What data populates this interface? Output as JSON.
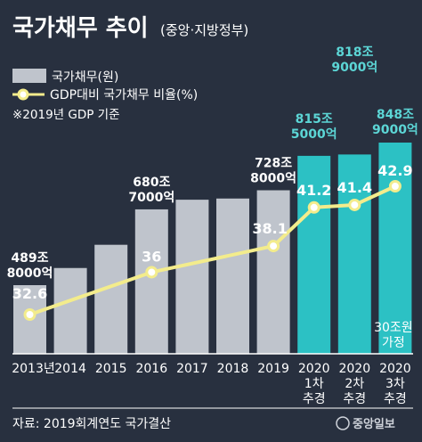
{
  "header": {
    "title": "국가채무 추이",
    "subtitle": "(중앙·지방정부)"
  },
  "legend": {
    "bar_label": "국가채무(원)",
    "line_label": "GDP대비 국가채무 비율(%)",
    "note": "※2019년 GDP 기준"
  },
  "footer": {
    "source": "자료: 2019회계연도 국가결산",
    "logo": "중앙일보"
  },
  "colors": {
    "background": "#28303f",
    "bar_gray": "#bfc4cc",
    "bar_teal": "#2cc1c4",
    "line": "#f3ec8c",
    "marker_fill": "#ffffff",
    "teal_text": "#5cd6d6",
    "axis": "#ffffff"
  },
  "chart_data": {
    "type": "bar",
    "categories": [
      [
        "2013년"
      ],
      [
        "2014"
      ],
      [
        "2015"
      ],
      [
        "2016"
      ],
      [
        "2017"
      ],
      [
        "2018"
      ],
      [
        "2019"
      ],
      [
        "2020",
        "1차",
        "추경"
      ],
      [
        "2020",
        "2차",
        "추경"
      ],
      [
        "2020",
        "3차",
        "추경"
      ]
    ],
    "series": [
      {
        "name": "국가채무(원)",
        "type": "bar",
        "unit": "조원",
        "values": [
          489.8,
          533,
          591.5,
          680.7,
          705,
          708,
          728.8,
          815.5,
          818.9,
          848.9
        ],
        "bar_labels": [
          [
            "489조",
            "8000억"
          ],
          null,
          null,
          [
            "680조",
            "7000억"
          ],
          null,
          null,
          [
            "728조",
            "8000억"
          ],
          [
            "815조",
            "5000억"
          ],
          [
            "818조",
            "9000억"
          ],
          [
            "848조",
            "9000억"
          ]
        ],
        "colors": [
          "gray",
          "gray",
          "gray",
          "gray",
          "gray",
          "gray",
          "gray",
          "teal",
          "teal",
          "teal"
        ]
      },
      {
        "name": "GDP대비 국가채무 비율(%)",
        "type": "line",
        "unit": "%",
        "points": [
          {
            "index": 0,
            "value": 32.6,
            "label": "32.6"
          },
          {
            "index": 3,
            "value": 36,
            "label": "36"
          },
          {
            "index": 6,
            "value": 38.1,
            "label": "38.1"
          },
          {
            "index": 7,
            "value": 41.2,
            "label": "41.2"
          },
          {
            "index": 8,
            "value": 41.4,
            "label": "41.4"
          },
          {
            "index": 9,
            "value": 42.9,
            "label": "42.9"
          }
        ]
      }
    ],
    "annotations": [
      {
        "index": 9,
        "lines": [
          "30조원",
          "가정"
        ]
      }
    ],
    "title": "국가채무 추이",
    "grid": false,
    "legend_position": "top-left"
  }
}
